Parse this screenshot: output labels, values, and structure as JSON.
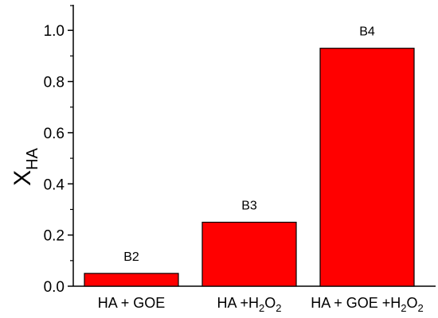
{
  "chart_data": {
    "type": "bar",
    "title": "",
    "xlabel": "",
    "ylabel": "X",
    "ylabel_subscript": "HA",
    "ylim": [
      0,
      1.1
    ],
    "yticks": [
      0.0,
      0.2,
      0.4,
      0.6,
      0.8,
      1.0
    ],
    "ytick_labels": [
      "0.0",
      "0.2",
      "0.4",
      "0.6",
      "0.8",
      "1.0"
    ],
    "categories": [
      {
        "main": "HA + GOE",
        "sub": "",
        "tail": ""
      },
      {
        "main": "HA +H",
        "sub": "2",
        "mid": "O",
        "sub2": "2"
      },
      {
        "main": "HA + GOE +H",
        "sub": "2",
        "mid": "O",
        "sub2": "2"
      }
    ],
    "values": [
      0.05,
      0.25,
      0.93
    ],
    "bar_labels": [
      "B2",
      "B3",
      "B4"
    ],
    "bar_color": "#ff0000",
    "grid": false,
    "legend": "none"
  }
}
